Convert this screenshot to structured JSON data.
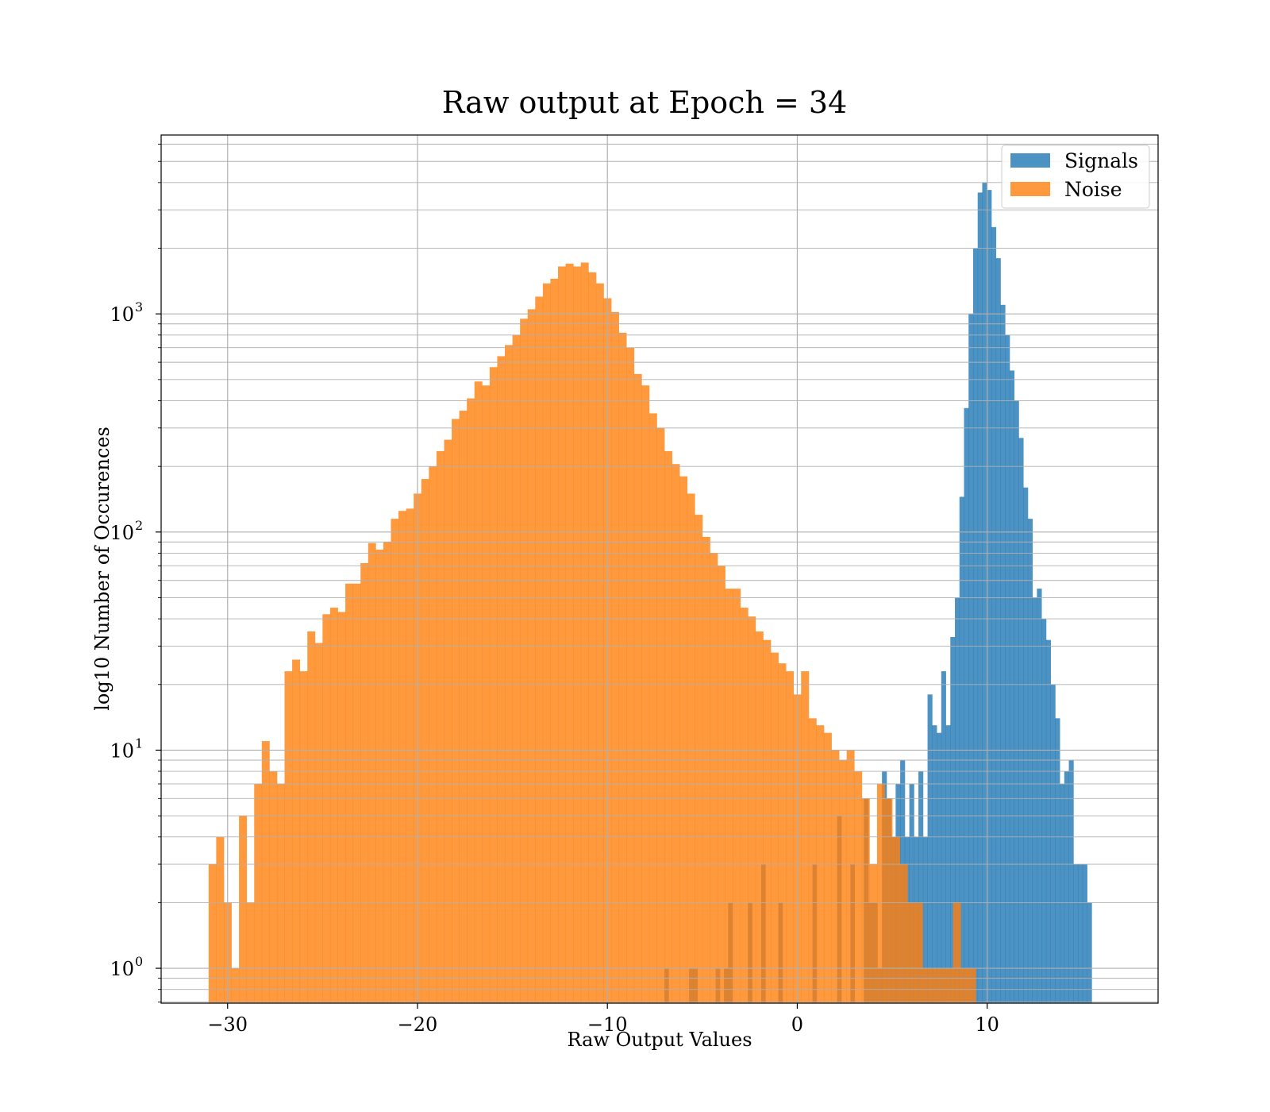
{
  "chart_data": {
    "type": "histogram",
    "title": "Raw output at Epoch = 34",
    "xlabel": "Raw Output Values",
    "ylabel": "log10 Number of Occurences",
    "xlim": [
      -33.5,
      19
    ],
    "ylim_log10": [
      -0.16,
      3.82
    ],
    "yscale": "log",
    "grid": true,
    "legend_position": "top-right",
    "x_ticks": [
      {
        "value": -30,
        "label": "−30"
      },
      {
        "value": -20,
        "label": "−20"
      },
      {
        "value": -10,
        "label": "−10"
      },
      {
        "value": 0,
        "label": "0"
      },
      {
        "value": 10,
        "label": "10"
      }
    ],
    "y_ticks": [
      {
        "exp": 0,
        "base": "10",
        "sup": "0"
      },
      {
        "exp": 1,
        "base": "10",
        "sup": "1"
      },
      {
        "exp": 2,
        "base": "10",
        "sup": "2"
      },
      {
        "exp": 3,
        "base": "10",
        "sup": "3"
      }
    ],
    "series": [
      {
        "name": "Signals",
        "color": "#1f77b4",
        "opacity": 0.8,
        "bins": [
          [
            -7.0,
            -6.78,
            1
          ],
          [
            -5.7,
            -5.48,
            1
          ],
          [
            -5.48,
            -5.26,
            1
          ],
          [
            -4.3,
            -4.08,
            1
          ],
          [
            -3.86,
            -3.64,
            1
          ],
          [
            -3.64,
            -3.42,
            2
          ],
          [
            -2.6,
            -2.38,
            2
          ],
          [
            -1.9,
            -1.68,
            3
          ],
          [
            -1.0,
            -0.78,
            2
          ],
          [
            0.8,
            1.02,
            3
          ],
          [
            2.1,
            2.32,
            5
          ],
          [
            2.8,
            3.02,
            3
          ],
          [
            3.5,
            3.74,
            6
          ],
          [
            3.74,
            3.98,
            2
          ],
          [
            3.98,
            4.22,
            2
          ],
          [
            4.22,
            4.46,
            1
          ],
          [
            4.46,
            4.7,
            8
          ],
          [
            4.7,
            4.94,
            6
          ],
          [
            4.94,
            5.18,
            4
          ],
          [
            5.18,
            5.42,
            7
          ],
          [
            5.42,
            5.66,
            9
          ],
          [
            5.66,
            5.9,
            4
          ],
          [
            5.9,
            6.14,
            7
          ],
          [
            6.14,
            6.38,
            4
          ],
          [
            6.38,
            6.62,
            8
          ],
          [
            6.62,
            6.86,
            4
          ],
          [
            6.86,
            7.1,
            18
          ],
          [
            7.1,
            7.34,
            13
          ],
          [
            7.34,
            7.58,
            12
          ],
          [
            7.58,
            7.82,
            23
          ],
          [
            7.82,
            8.06,
            13
          ],
          [
            8.06,
            8.3,
            33
          ],
          [
            8.3,
            8.54,
            50
          ],
          [
            8.54,
            8.78,
            145
          ],
          [
            8.78,
            9.02,
            370
          ],
          [
            9.02,
            9.26,
            1000
          ],
          [
            9.26,
            9.5,
            2000
          ],
          [
            9.5,
            9.74,
            3600
          ],
          [
            9.74,
            9.98,
            4000
          ],
          [
            9.98,
            10.22,
            3700
          ],
          [
            10.22,
            10.46,
            2500
          ],
          [
            10.46,
            10.7,
            1800
          ],
          [
            10.7,
            10.94,
            1100
          ],
          [
            10.94,
            11.18,
            800
          ],
          [
            11.18,
            11.42,
            550
          ],
          [
            11.42,
            11.66,
            400
          ],
          [
            11.66,
            11.9,
            270
          ],
          [
            11.9,
            12.14,
            160
          ],
          [
            12.14,
            12.38,
            115
          ],
          [
            12.38,
            12.62,
            50
          ],
          [
            12.62,
            12.86,
            55
          ],
          [
            12.86,
            13.1,
            40
          ],
          [
            13.1,
            13.34,
            32
          ],
          [
            13.34,
            13.58,
            20
          ],
          [
            13.58,
            13.82,
            14
          ],
          [
            13.82,
            14.06,
            7
          ],
          [
            14.06,
            14.3,
            8
          ],
          [
            14.3,
            14.54,
            9
          ],
          [
            14.54,
            14.78,
            3
          ],
          [
            14.78,
            15.02,
            3
          ],
          [
            15.02,
            15.26,
            3
          ],
          [
            15.26,
            15.5,
            2
          ]
        ]
      },
      {
        "name": "Noise",
        "color": "#ff7f0e",
        "opacity": 0.8,
        "bins": [
          [
            -31.0,
            -30.6,
            3
          ],
          [
            -30.6,
            -30.2,
            4
          ],
          [
            -30.2,
            -29.8,
            2
          ],
          [
            -29.8,
            -29.4,
            1
          ],
          [
            -29.4,
            -29.0,
            5
          ],
          [
            -29.0,
            -28.6,
            2
          ],
          [
            -28.6,
            -28.2,
            7
          ],
          [
            -28.2,
            -27.8,
            11
          ],
          [
            -27.8,
            -27.4,
            8
          ],
          [
            -27.4,
            -27.0,
            7
          ],
          [
            -27.0,
            -26.6,
            23
          ],
          [
            -26.6,
            -26.2,
            26
          ],
          [
            -26.2,
            -25.8,
            23
          ],
          [
            -25.8,
            -25.4,
            35
          ],
          [
            -25.4,
            -25.0,
            31
          ],
          [
            -25.0,
            -24.6,
            42
          ],
          [
            -24.6,
            -24.2,
            45
          ],
          [
            -24.2,
            -23.8,
            43
          ],
          [
            -23.8,
            -23.4,
            58
          ],
          [
            -23.4,
            -23.0,
            58
          ],
          [
            -23.0,
            -22.6,
            72
          ],
          [
            -22.6,
            -22.2,
            89
          ],
          [
            -22.2,
            -21.8,
            83
          ],
          [
            -21.8,
            -21.4,
            90
          ],
          [
            -21.4,
            -21.0,
            115
          ],
          [
            -21.0,
            -20.6,
            125
          ],
          [
            -20.6,
            -20.2,
            128
          ],
          [
            -20.2,
            -19.8,
            150
          ],
          [
            -19.8,
            -19.4,
            175
          ],
          [
            -19.4,
            -19.0,
            200
          ],
          [
            -19.0,
            -18.6,
            235
          ],
          [
            -18.6,
            -18.2,
            265
          ],
          [
            -18.2,
            -17.8,
            330
          ],
          [
            -17.8,
            -17.4,
            360
          ],
          [
            -17.4,
            -17.0,
            410
          ],
          [
            -17.0,
            -16.6,
            490
          ],
          [
            -16.6,
            -16.2,
            470
          ],
          [
            -16.2,
            -15.8,
            570
          ],
          [
            -15.8,
            -15.4,
            640
          ],
          [
            -15.4,
            -15.0,
            720
          ],
          [
            -15.0,
            -14.6,
            800
          ],
          [
            -14.6,
            -14.2,
            950
          ],
          [
            -14.2,
            -13.8,
            1050
          ],
          [
            -13.8,
            -13.4,
            1200
          ],
          [
            -13.4,
            -13.0,
            1380
          ],
          [
            -13.0,
            -12.6,
            1450
          ],
          [
            -12.6,
            -12.2,
            1650
          ],
          [
            -12.2,
            -11.8,
            1700
          ],
          [
            -11.8,
            -11.4,
            1650
          ],
          [
            -11.4,
            -11.0,
            1720
          ],
          [
            -11.0,
            -10.6,
            1550
          ],
          [
            -10.6,
            -10.2,
            1380
          ],
          [
            -10.2,
            -9.8,
            1180
          ],
          [
            -9.8,
            -9.4,
            1020
          ],
          [
            -9.4,
            -9.0,
            820
          ],
          [
            -9.0,
            -8.6,
            700
          ],
          [
            -8.6,
            -8.2,
            530
          ],
          [
            -8.2,
            -7.8,
            470
          ],
          [
            -7.8,
            -7.4,
            350
          ],
          [
            -7.4,
            -7.0,
            300
          ],
          [
            -7.0,
            -6.6,
            235
          ],
          [
            -6.6,
            -6.2,
            205
          ],
          [
            -6.2,
            -5.8,
            180
          ],
          [
            -5.8,
            -5.4,
            150
          ],
          [
            -5.4,
            -5.0,
            120
          ],
          [
            -5.0,
            -4.6,
            95
          ],
          [
            -4.6,
            -4.2,
            80
          ],
          [
            -4.2,
            -3.8,
            70
          ],
          [
            -3.8,
            -3.4,
            55
          ],
          [
            -3.4,
            -3.0,
            55
          ],
          [
            -3.0,
            -2.6,
            45
          ],
          [
            -2.6,
            -2.2,
            41
          ],
          [
            -2.2,
            -1.8,
            35
          ],
          [
            -1.8,
            -1.4,
            32
          ],
          [
            -1.4,
            -1.0,
            28
          ],
          [
            -1.0,
            -0.6,
            25
          ],
          [
            -0.6,
            -0.2,
            23
          ],
          [
            -0.2,
            0.2,
            18
          ],
          [
            0.2,
            0.6,
            23
          ],
          [
            0.6,
            1.0,
            14
          ],
          [
            1.0,
            1.4,
            13
          ],
          [
            1.4,
            1.8,
            12
          ],
          [
            1.8,
            2.2,
            10
          ],
          [
            2.2,
            2.6,
            9
          ],
          [
            2.6,
            3.0,
            10
          ],
          [
            3.0,
            3.4,
            8
          ],
          [
            3.4,
            3.8,
            6
          ],
          [
            3.8,
            4.2,
            3
          ],
          [
            4.2,
            4.6,
            7
          ],
          [
            4.6,
            5.0,
            6
          ],
          [
            5.0,
            5.4,
            4
          ],
          [
            5.4,
            5.8,
            3
          ],
          [
            5.8,
            6.2,
            2
          ],
          [
            6.2,
            6.6,
            2
          ],
          [
            6.6,
            7.0,
            1
          ],
          [
            7.0,
            7.4,
            1
          ],
          [
            7.4,
            7.8,
            1
          ],
          [
            7.8,
            8.2,
            1
          ],
          [
            8.2,
            8.6,
            2
          ],
          [
            8.6,
            9.0,
            1
          ],
          [
            9.0,
            9.4,
            1
          ]
        ]
      }
    ]
  }
}
